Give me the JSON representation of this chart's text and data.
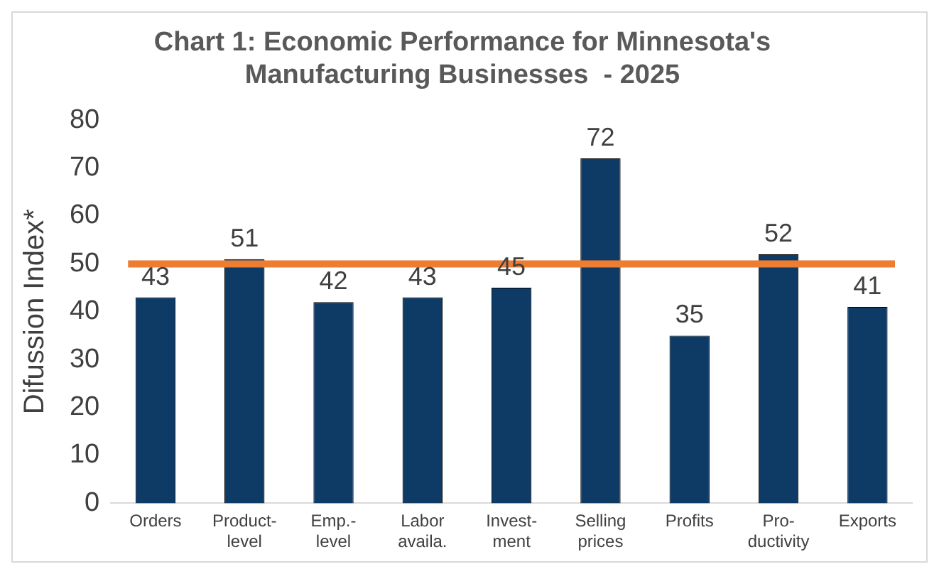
{
  "chart_data": {
    "type": "bar",
    "title": "Chart 1: Economic Performance for Minnesota's\nManufacturing Businesses  - 2025",
    "ylabel": "Difussion Index*",
    "categories": [
      "Orders",
      "Product-\nlevel",
      "Emp.-\nlevel",
      "Labor\navaila.",
      "Invest-\nment",
      "Selling\nprices",
      "Profits",
      "Pro-\nductivity",
      "Exports"
    ],
    "values": [
      43,
      51,
      42,
      43,
      45,
      72,
      35,
      52,
      41
    ],
    "color": "#0e3a66",
    "ylim": [
      0,
      80
    ],
    "yticks": [
      0,
      10,
      20,
      30,
      40,
      50,
      60,
      70,
      80
    ],
    "grid": false,
    "data_labels": true,
    "ref_lines": [
      {
        "axis": "y",
        "value": 50,
        "color": "#ed7d31"
      }
    ]
  }
}
